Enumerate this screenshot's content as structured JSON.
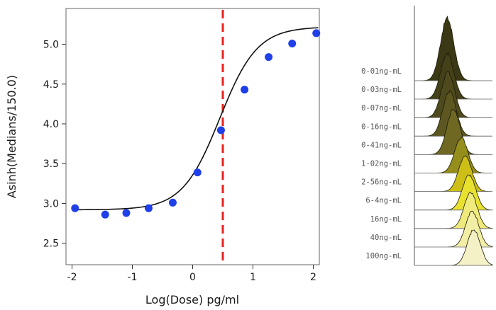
{
  "chart_data": [
    {
      "type": "scatter",
      "xlabel": "Log(Dose) pg/ml",
      "ylabel": "Asinh(Medians/150.0)",
      "xlim": [
        -2.1,
        2.1
      ],
      "ylim": [
        2.23,
        5.45
      ],
      "x_ticks": [
        -2,
        -1,
        0,
        1,
        2
      ],
      "x_tick_labels": [
        "-2",
        "-1",
        "0",
        "1",
        "2"
      ],
      "y_ticks": [
        2.5,
        3.0,
        3.5,
        4.0,
        4.5,
        5.0
      ],
      "y_tick_labels": [
        "2.5",
        "3.0",
        "3.5",
        "4.0",
        "4.5",
        "5.0"
      ],
      "grid": false,
      "points": {
        "color": "#1f3fe8",
        "x": [
          -1.95,
          -1.45,
          -1.1,
          -0.73,
          -0.33,
          0.08,
          0.47,
          0.86,
          1.26,
          1.65,
          2.05
        ],
        "y": [
          2.94,
          2.86,
          2.88,
          2.94,
          3.01,
          3.39,
          3.92,
          4.43,
          4.84,
          5.01,
          5.14
        ]
      },
      "fit_curve": {
        "type": "sigmoid",
        "color": "#111111",
        "bottom": 2.92,
        "top": 5.22,
        "ec50_log": 0.45,
        "slope": 1.4
      },
      "ec50_line": {
        "x": 0.5,
        "color": "#e8221c",
        "style": "dashed"
      }
    },
    {
      "type": "ridgeline",
      "labels": [
        "0-01ng-mL",
        "0-03ng-mL",
        "0-07ng-mL",
        "0-16ng-mL",
        "0-41ng-mL",
        "1-02ng-mL",
        "2-56ng-mL",
        "6-4ng-mL",
        "16ng-mL",
        "40ng-mL",
        "100ng-mL"
      ],
      "colors": [
        "#3b3815",
        "#444019",
        "#4f4a1d",
        "#5c5621",
        "#6e6823",
        "#958d1c",
        "#cdbf16",
        "#e8e22f",
        "#efea7c",
        "#f2eea5",
        "#f4f1c6"
      ],
      "peak_positions": [
        0.42,
        0.42,
        0.43,
        0.45,
        0.5,
        0.6,
        0.65,
        0.7,
        0.72,
        0.74,
        0.76
      ]
    }
  ]
}
